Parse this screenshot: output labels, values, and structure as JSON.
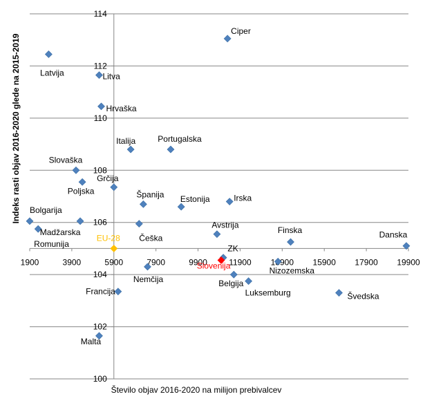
{
  "chart_data": {
    "type": "scatter",
    "xlabel": "Število objav 2016-2020 na milijon prebivalcev",
    "ylabel": "Indeks rasti objav 2016-2020 glede na 2015-2019",
    "xlim": [
      1900,
      19900
    ],
    "ylim": [
      100,
      114
    ],
    "x_ticks": [
      1900,
      3900,
      5900,
      7900,
      9900,
      11900,
      13900,
      15900,
      17900,
      19900
    ],
    "y_ticks": [
      100,
      102,
      104,
      106,
      108,
      110,
      112,
      114
    ],
    "cross_x": 5900,
    "cross_y": 105,
    "grid": "horizontal",
    "marker_color": "#4f81bd",
    "highlight_colors": {
      "EU-28": "#ffc000",
      "Slovenija": "#ff0000"
    },
    "points": [
      {
        "label": "Latvija",
        "x": 2800,
        "y": 112.45
      },
      {
        "label": "Litva",
        "x": 5200,
        "y": 111.65
      },
      {
        "label": "Ciper",
        "x": 11300,
        "y": 113.05
      },
      {
        "label": "Hrvaška",
        "x": 5300,
        "y": 110.45
      },
      {
        "label": "Italija",
        "x": 6700,
        "y": 108.8
      },
      {
        "label": "Portugalska",
        "x": 8600,
        "y": 108.8
      },
      {
        "label": "Slovaška",
        "x": 4100,
        "y": 108.0
      },
      {
        "label": "Grčija",
        "x": 5900,
        "y": 107.35
      },
      {
        "label": "Poljska",
        "x": 4400,
        "y": 107.55
      },
      {
        "label": "Španija",
        "x": 7300,
        "y": 106.7
      },
      {
        "label": "Estonija",
        "x": 9100,
        "y": 106.6
      },
      {
        "label": "Irska",
        "x": 11400,
        "y": 106.8
      },
      {
        "label": "Bolgarija",
        "x": 1900,
        "y": 106.05
      },
      {
        "label": "Madžarska",
        "x": 4300,
        "y": 106.05
      },
      {
        "label": "Romunija",
        "x": 2300,
        "y": 105.75
      },
      {
        "label": "Češka",
        "x": 7100,
        "y": 105.95
      },
      {
        "label": "Avstrija",
        "x": 10800,
        "y": 105.55
      },
      {
        "label": "Finska",
        "x": 14300,
        "y": 105.25
      },
      {
        "label": "Danska",
        "x": 19800,
        "y": 105.1
      },
      {
        "label": "EU-28",
        "x": 5900,
        "y": 105.0
      },
      {
        "label": "ZK",
        "x": 11100,
        "y": 104.65
      },
      {
        "label": "Slovenija",
        "x": 11000,
        "y": 104.55
      },
      {
        "label": "Nemčija",
        "x": 7500,
        "y": 104.3
      },
      {
        "label": "Belgija",
        "x": 11600,
        "y": 104.0
      },
      {
        "label": "Nizozemska",
        "x": 13700,
        "y": 104.5
      },
      {
        "label": "Luksemburg",
        "x": 12300,
        "y": 103.75
      },
      {
        "label": "Švedska",
        "x": 16600,
        "y": 103.3
      },
      {
        "label": "Francija",
        "x": 6100,
        "y": 103.35
      },
      {
        "label": "Malta",
        "x": 5200,
        "y": 101.65
      }
    ]
  }
}
